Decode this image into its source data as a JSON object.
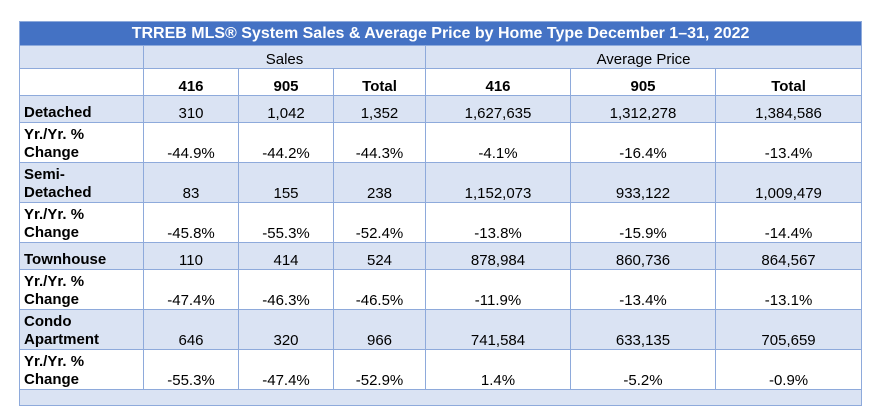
{
  "title": "TRREB MLS® System Sales & Average Price by Home Type December 1–31, 2022",
  "groups": {
    "sales": "Sales",
    "avg_price": "Average Price"
  },
  "columns": [
    "416",
    "905",
    "Total",
    "416",
    "905",
    "Total"
  ],
  "rows": [
    {
      "label_lines": [
        "Detached"
      ],
      "values": [
        "310",
        "1,042",
        "1,352",
        "1,627,635",
        "1,312,278",
        "1,384,586"
      ]
    },
    {
      "label_lines": [
        "Yr./Yr. %",
        "Change"
      ],
      "values": [
        "-44.9%",
        "-44.2%",
        "-44.3%",
        "-4.1%",
        "-16.4%",
        "-13.4%"
      ]
    },
    {
      "label_lines": [
        "Semi-",
        "Detached"
      ],
      "values": [
        "83",
        "155",
        "238",
        "1,152,073",
        "933,122",
        "1,009,479"
      ]
    },
    {
      "label_lines": [
        "Yr./Yr. %",
        "Change"
      ],
      "values": [
        "-45.8%",
        "-55.3%",
        "-52.4%",
        "-13.8%",
        "-15.9%",
        "-14.4%"
      ]
    },
    {
      "label_lines": [
        "Townhouse"
      ],
      "values": [
        "110",
        "414",
        "524",
        "878,984",
        "860,736",
        "864,567"
      ]
    },
    {
      "label_lines": [
        "Yr./Yr. %",
        "Change"
      ],
      "values": [
        "-47.4%",
        "-46.3%",
        "-46.5%",
        "-11.9%",
        "-13.4%",
        "-13.1%"
      ]
    },
    {
      "label_lines": [
        "Condo",
        "Apartment"
      ],
      "values": [
        "646",
        "320",
        "966",
        "741,584",
        "633,135",
        "705,659"
      ]
    },
    {
      "label_lines": [
        "Yr./Yr. %",
        "Change"
      ],
      "values": [
        "-55.3%",
        "-47.4%",
        "-52.9%",
        "1.4%",
        "-5.2%",
        "-0.9%"
      ]
    }
  ],
  "colors": {
    "title_bg": "#4472c4",
    "band": "#dae3f3",
    "border": "#8eaadb"
  }
}
